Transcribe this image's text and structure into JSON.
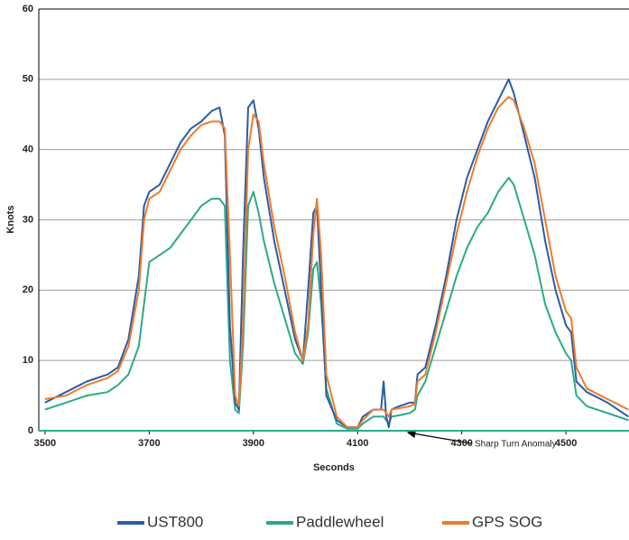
{
  "chart_data": {
    "type": "line",
    "x_label": "Seconds",
    "y_label": "Knots",
    "annotation": "Sharp Turn Anomaly",
    "x": [
      3500,
      3540,
      3580,
      3620,
      3640,
      3660,
      3680,
      3690,
      3700,
      3720,
      3740,
      3760,
      3780,
      3800,
      3820,
      3835,
      3845,
      3855,
      3865,
      3872,
      3880,
      3890,
      3900,
      3910,
      3920,
      3940,
      3960,
      3980,
      3995,
      4005,
      4015,
      4022,
      4030,
      4040,
      4060,
      4080,
      4100,
      4110,
      4130,
      4145,
      4150,
      4155,
      4160,
      4165,
      4180,
      4200,
      4210,
      4215,
      4230,
      4250,
      4270,
      4290,
      4310,
      4330,
      4350,
      4370,
      4390,
      4400,
      4420,
      4440,
      4460,
      4480,
      4500,
      4510,
      4520,
      4540,
      4580,
      4620
    ],
    "series": [
      {
        "name": "UST800",
        "color": "#2a5caa",
        "values": [
          4,
          5.5,
          7,
          8,
          9,
          13,
          22,
          32,
          34,
          35,
          38,
          41,
          43,
          44,
          45.5,
          46,
          42,
          15,
          4,
          3,
          25,
          46,
          47,
          43,
          36,
          27,
          20,
          13,
          10,
          20,
          31,
          32,
          20,
          5,
          1.5,
          0.5,
          0.5,
          2,
          3,
          3,
          7,
          2,
          0.5,
          3,
          3.5,
          4,
          4,
          8,
          9,
          15,
          22,
          30,
          36,
          40,
          44,
          47,
          50,
          48,
          42,
          36,
          27,
          20,
          15,
          14,
          7,
          5.5,
          4,
          2
        ]
      },
      {
        "name": "Paddlewheel",
        "color": "#2aaa8a",
        "values": [
          3,
          4,
          5,
          5.5,
          6.5,
          8,
          12,
          18,
          24,
          25,
          26,
          28,
          30,
          32,
          33,
          33,
          32,
          10,
          3,
          2.5,
          12,
          32,
          34,
          31,
          27,
          21,
          16,
          11,
          9.5,
          14,
          23,
          24,
          18,
          6,
          1,
          0.3,
          0.3,
          1,
          2,
          2,
          2,
          1.5,
          1,
          2,
          2.2,
          2.5,
          3,
          5,
          7,
          12,
          17,
          22,
          26,
          29,
          31,
          34,
          36,
          35,
          30,
          25,
          18,
          14,
          11,
          10,
          5,
          3.5,
          2.5,
          1.5
        ]
      },
      {
        "name": "GPS SOG",
        "color": "#f07a2a",
        "values": [
          4.5,
          5,
          6.5,
          7.5,
          8.5,
          12,
          20,
          30,
          33,
          34,
          37,
          40,
          42,
          43.5,
          44,
          44,
          43,
          25,
          5,
          3.5,
          15,
          40,
          45,
          44,
          38,
          29,
          22,
          14,
          10,
          15,
          28,
          33,
          25,
          8,
          2,
          0.5,
          0.5,
          1.5,
          3,
          3,
          3,
          2.5,
          2,
          3,
          3.2,
          3.5,
          3.8,
          7,
          8,
          14,
          21,
          28,
          34,
          39,
          43,
          46,
          47.5,
          47,
          43,
          38,
          30,
          22,
          17,
          16,
          9,
          6,
          4.5,
          3
        ]
      }
    ],
    "xlim": [
      3488,
      4621
    ],
    "xticks": [
      3500,
      3700,
      3900,
      4100,
      4300,
      4500
    ],
    "ylim": [
      0,
      60
    ],
    "yticks": [
      0,
      10,
      20,
      30,
      40,
      50,
      60
    ],
    "grid": true
  }
}
